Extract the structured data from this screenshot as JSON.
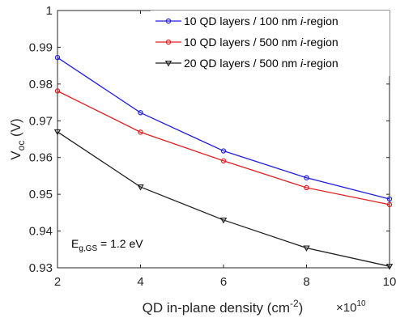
{
  "chart_data": {
    "type": "line",
    "x": [
      2,
      4,
      6,
      8,
      10
    ],
    "series": [
      {
        "name_parts": [
          "10 QD layers / 100 nm  ",
          "i",
          "-region"
        ],
        "color": "#2020e0",
        "marker": "circle",
        "values": [
          0.9872,
          0.9722,
          0.9618,
          0.9545,
          0.9487
        ]
      },
      {
        "name_parts": [
          "10 QD layers / 500 nm  ",
          "i",
          "-region"
        ],
        "color": "#e02020",
        "marker": "circle",
        "values": [
          0.9781,
          0.9669,
          0.9591,
          0.9518,
          0.9472
        ]
      },
      {
        "name_parts": [
          "20 QD layers / 500 nm  ",
          "i",
          "-region"
        ],
        "color": "#222222",
        "marker": "triangle-down",
        "values": [
          0.967,
          0.952,
          0.943,
          0.9354,
          0.9304
        ]
      }
    ],
    "xlabel_parts": [
      "QD in-plane density (cm",
      "-2",
      ")"
    ],
    "x_multiplier_parts": [
      "×10",
      "10"
    ],
    "ylabel_parts": [
      "V",
      "oc",
      " (V)"
    ],
    "xlim": [
      2,
      10
    ],
    "ylim": [
      0.93,
      1.0
    ],
    "x_ticks": [
      "2",
      "4",
      "6",
      "8",
      "10"
    ],
    "y_ticks": [
      "0.93",
      "0.94",
      "0.95",
      "0.96",
      "0.97",
      "0.98",
      "0.99",
      "1"
    ],
    "annotation_parts": [
      "E",
      "g,GS",
      " = 1.2 eV"
    ],
    "grid": false,
    "legend_position": "top-right"
  }
}
